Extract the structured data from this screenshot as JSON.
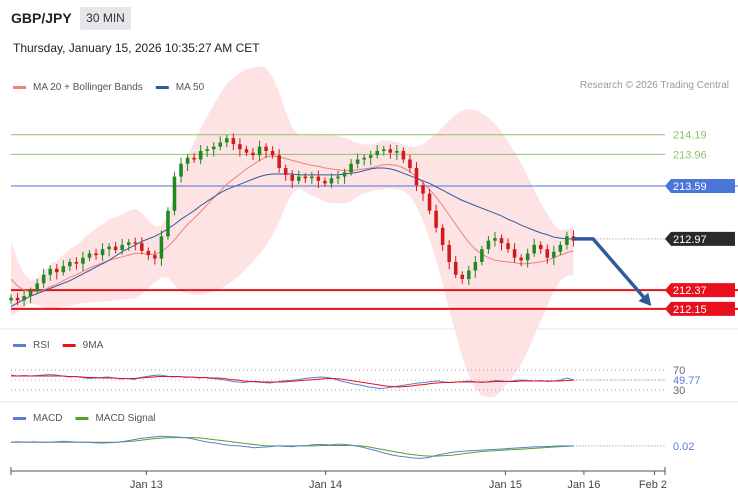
{
  "header": {
    "pair": "GBP/JPY",
    "timeframe": "30 MIN",
    "datetime": "Thursday, January 15, 2026 10:35:27 AM CET",
    "attribution": "Research © 2026 Trading Central"
  },
  "colors": {
    "bollinger_fill": "#fde0e0",
    "ma20": "#f08080",
    "ma50": "#2f5b9a",
    "resistance": "#8dc26b",
    "pivot": "#4a76d9",
    "support": "#e8101c",
    "candle_up": "#1f8a1f",
    "candle_down": "#d11a1a",
    "rsi": "#5b7fd6",
    "rsi_ma": "#e8101c",
    "macd": "#5b7fd6",
    "macd_signal": "#5aa02c",
    "arrow": "#2f5b9a"
  },
  "chart_data": [
    {
      "type": "candlestick",
      "legend": [
        "MA 20 + Bollinger Bands",
        "MA 50"
      ],
      "ylim": [
        211.95,
        214.55
      ],
      "xlim": [
        0,
        100
      ],
      "x_ticks": [
        {
          "x": 20.7,
          "label": "Jan 13"
        },
        {
          "x": 48.1,
          "label": "Jan 14"
        },
        {
          "x": 75.6,
          "label": "Jan 15"
        },
        {
          "x": 87.6,
          "label": "Jan 16"
        },
        {
          "x": 98.4,
          "label": "Feb 2"
        }
      ],
      "current_index": 86,
      "forecast": [
        [
          86,
          212.97
        ],
        [
          89,
          212.97
        ],
        [
          97.5,
          212.22
        ]
      ],
      "levels": [
        {
          "value": 214.19,
          "label": "214.19",
          "kind": "resistance"
        },
        {
          "value": 213.96,
          "label": "213.96",
          "kind": "resistance"
        },
        {
          "value": 213.59,
          "label": "213.59",
          "kind": "pivot"
        },
        {
          "value": 212.97,
          "label": "212.97",
          "kind": "last"
        },
        {
          "value": 212.37,
          "label": "212.37",
          "kind": "support"
        },
        {
          "value": 212.15,
          "label": "212.15",
          "kind": "support"
        }
      ],
      "close": [
        212.28,
        212.25,
        212.3,
        212.36,
        212.45,
        212.55,
        212.62,
        212.58,
        212.65,
        212.7,
        212.68,
        212.75,
        212.8,
        212.78,
        212.85,
        212.88,
        212.84,
        212.9,
        212.93,
        212.92,
        212.83,
        212.78,
        212.74,
        213.0,
        213.3,
        213.7,
        213.85,
        213.92,
        213.9,
        214.0,
        214.02,
        214.05,
        214.1,
        214.15,
        214.08,
        214.02,
        213.98,
        213.95,
        214.05,
        214.0,
        213.95,
        213.8,
        213.72,
        213.65,
        213.7,
        213.68,
        213.7,
        213.65,
        213.62,
        213.68,
        213.7,
        213.75,
        213.85,
        213.9,
        213.92,
        213.95,
        214.0,
        214.02,
        213.98,
        214.0,
        213.9,
        213.8,
        213.6,
        213.5,
        213.3,
        213.1,
        212.9,
        212.7,
        212.55,
        212.5,
        212.6,
        212.7,
        212.85,
        212.95,
        212.98,
        212.92,
        212.85,
        212.75,
        212.72,
        212.8,
        212.9,
        212.85,
        212.75,
        212.82,
        212.9,
        213.0,
        212.95
      ],
      "ma20": [
        212.5,
        212.42,
        212.37,
        212.35,
        212.35,
        212.37,
        212.41,
        212.44,
        212.48,
        212.52,
        212.55,
        212.59,
        212.63,
        212.66,
        212.69,
        212.72,
        212.74,
        212.76,
        212.78,
        212.8,
        212.8,
        212.79,
        212.79,
        212.82,
        212.88,
        212.96,
        213.05,
        213.14,
        213.21,
        213.29,
        213.37,
        213.45,
        213.53,
        213.61,
        213.67,
        213.73,
        213.79,
        213.84,
        213.89,
        213.93,
        213.94,
        213.93,
        213.91,
        213.89,
        213.87,
        213.85,
        213.83,
        213.82,
        213.8,
        213.79,
        213.78,
        213.77,
        213.77,
        213.78,
        213.79,
        213.8,
        213.82,
        213.84,
        213.84,
        213.83,
        213.8,
        213.76,
        213.7,
        213.63,
        213.55,
        213.46,
        213.36,
        213.25,
        213.14,
        213.03,
        212.93,
        212.85,
        212.79,
        212.75,
        212.72,
        212.71,
        212.7,
        212.69,
        212.68,
        212.68,
        212.69,
        212.7,
        212.72,
        212.75,
        212.78,
        212.81,
        212.83
      ],
      "ma50": [
        212.18,
        212.22,
        212.26,
        212.3,
        212.33,
        212.36,
        212.39,
        212.42,
        212.45,
        212.48,
        212.52,
        212.56,
        212.6,
        212.64,
        212.68,
        212.72,
        212.77,
        212.82,
        212.86,
        212.9,
        212.94,
        212.97,
        213.0,
        213.04,
        213.09,
        213.14,
        213.2,
        213.25,
        213.3,
        213.36,
        213.41,
        213.46,
        213.51,
        213.55,
        213.58,
        213.61,
        213.64,
        213.67,
        213.7,
        213.72,
        213.73,
        213.73,
        213.73,
        213.73,
        213.72,
        213.72,
        213.72,
        213.72,
        213.72,
        213.72,
        213.72,
        213.73,
        213.74,
        213.75,
        213.77,
        213.79,
        213.8,
        213.8,
        213.79,
        213.77,
        213.74,
        213.71,
        213.68,
        213.65,
        213.62,
        213.58,
        213.54,
        213.5,
        213.46,
        213.42,
        213.39,
        213.36,
        213.33,
        213.3,
        213.27,
        213.24,
        213.2,
        213.17,
        213.13,
        213.1,
        213.07,
        213.04,
        213.02,
        212.99,
        212.98,
        212.97,
        212.97
      ]
    },
    {
      "type": "line",
      "legend": [
        "RSI",
        "9MA"
      ],
      "ylim": [
        10,
        90
      ],
      "reference": [
        70,
        30
      ],
      "y_tick_labels": [
        "70",
        "30"
      ],
      "last_label": "49.77",
      "last_value": 49.77,
      "rsi": [
        60,
        58,
        59,
        58,
        59,
        60,
        61,
        60,
        58,
        56,
        57,
        55,
        53,
        54,
        55,
        56,
        54,
        52,
        53,
        51,
        55,
        57,
        59,
        60,
        58,
        56,
        57,
        55,
        56,
        54,
        55,
        53,
        52,
        50,
        48,
        46,
        45,
        47,
        46,
        45,
        44,
        46,
        48,
        49,
        50,
        52,
        54,
        55,
        56,
        55,
        52,
        48,
        45,
        42,
        40,
        37,
        35,
        33,
        34,
        36,
        38,
        40,
        42,
        44,
        45,
        47,
        48,
        46,
        45,
        46,
        47,
        48,
        46,
        45,
        47,
        49,
        48,
        47,
        49,
        50,
        49,
        48,
        49,
        47,
        48,
        50,
        54,
        50
      ],
      "rsi_ma": [
        58,
        58,
        58,
        58,
        58,
        58,
        58,
        58,
        58,
        57,
        57,
        56,
        55,
        55,
        54,
        54,
        54,
        53,
        53,
        53,
        54,
        55,
        56,
        57,
        57,
        57,
        57,
        56,
        56,
        55,
        55,
        54,
        54,
        53,
        51,
        50,
        48,
        47,
        47,
        46,
        46,
        46,
        46,
        47,
        48,
        49,
        50,
        51,
        52,
        53,
        53,
        52,
        50,
        48,
        46,
        44,
        42,
        40,
        38,
        37,
        36,
        37,
        38,
        40,
        41,
        43,
        44,
        45,
        45,
        46,
        46,
        46,
        46,
        46,
        46,
        47,
        47,
        47,
        47,
        48,
        48,
        48,
        48,
        48,
        48,
        48,
        49,
        49.77
      ]
    },
    {
      "type": "line",
      "legend": [
        "MACD",
        "MACD Signal"
      ],
      "ylim": [
        -0.5,
        0.45
      ],
      "last_label": "0.02",
      "last_value": 0.02,
      "macd": [
        0.1,
        0.11,
        0.1,
        0.11,
        0.1,
        0.1,
        0.11,
        0.12,
        0.11,
        0.1,
        0.1,
        0.09,
        0.08,
        0.09,
        0.1,
        0.12,
        0.15,
        0.18,
        0.2,
        0.22,
        0.23,
        0.22,
        0.21,
        0.2,
        0.17,
        0.13,
        0.1,
        0.08,
        0.05,
        0.03,
        0.02,
        0.0,
        -0.02,
        -0.01,
        0.0,
        0.02,
        0.01,
        0.0,
        0.02,
        0.03,
        0.05,
        0.05,
        0.04,
        0.06,
        0.05,
        0.03,
        0.0,
        -0.04,
        -0.08,
        -0.13,
        -0.17,
        -0.2,
        -0.22,
        -0.24,
        -0.25,
        -0.23,
        -0.18,
        -0.15,
        -0.12,
        -0.1,
        -0.09,
        -0.08,
        -0.07,
        -0.06,
        -0.05,
        -0.04,
        -0.03,
        -0.02,
        -0.01,
        0.0,
        0.0,
        0.01,
        0.02,
        0.02,
        0.02
      ],
      "signal": [
        0.1,
        0.1,
        0.1,
        0.1,
        0.1,
        0.1,
        0.1,
        0.1,
        0.1,
        0.1,
        0.1,
        0.1,
        0.1,
        0.1,
        0.1,
        0.11,
        0.12,
        0.14,
        0.16,
        0.18,
        0.19,
        0.2,
        0.2,
        0.2,
        0.2,
        0.19,
        0.17,
        0.15,
        0.13,
        0.11,
        0.09,
        0.07,
        0.05,
        0.03,
        0.02,
        0.02,
        0.02,
        0.02,
        0.02,
        0.02,
        0.02,
        0.03,
        0.03,
        0.03,
        0.03,
        0.03,
        0.02,
        0.0,
        -0.03,
        -0.06,
        -0.09,
        -0.12,
        -0.15,
        -0.17,
        -0.19,
        -0.2,
        -0.2,
        -0.19,
        -0.18,
        -0.16,
        -0.14,
        -0.12,
        -0.1,
        -0.09,
        -0.08,
        -0.07,
        -0.06,
        -0.05,
        -0.04,
        -0.03,
        -0.02,
        -0.01,
        0.0,
        0.01,
        0.02
      ]
    }
  ]
}
